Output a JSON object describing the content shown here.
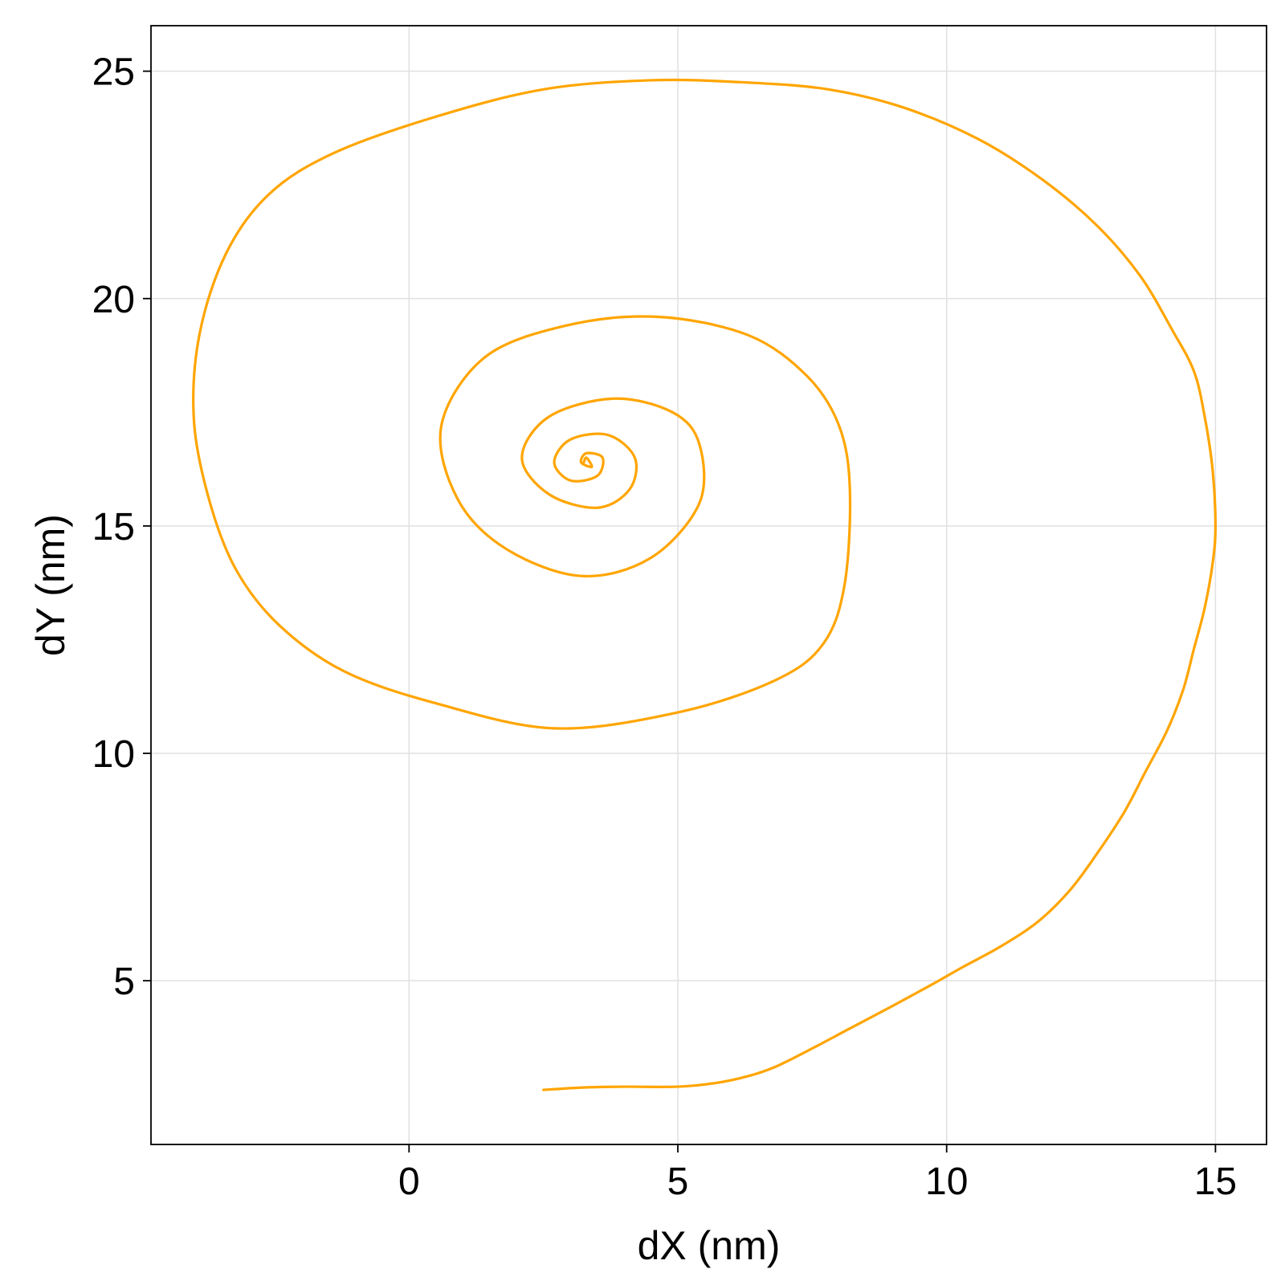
{
  "chart_data": {
    "type": "line",
    "title": "",
    "xlabel": "dX (nm)",
    "ylabel": "dY (nm)",
    "xlim": [
      -4.8,
      15.95
    ],
    "ylim": [
      1.4,
      26.0
    ],
    "xticks": [
      0,
      5,
      10,
      15
    ],
    "yticks": [
      5,
      10,
      15,
      20,
      25
    ],
    "grid": true,
    "legend": "none",
    "colors": {
      "line": "#FFA500",
      "grid": "#E0E0E0",
      "frame": "#000000",
      "text": "#000000"
    },
    "series": [
      {
        "x": [
          2.5,
          3.2,
          4.0,
          5.0,
          5.7,
          6.3,
          6.8,
          7.4,
          8.2,
          9.0,
          9.7,
          10.3,
          11.0,
          11.7,
          12.3,
          12.8,
          13.3,
          13.7,
          14.1,
          14.4,
          14.6,
          14.8,
          14.95,
          15.0,
          14.95,
          14.8,
          14.6,
          14.2,
          13.6,
          12.8,
          11.8,
          10.6,
          9.2,
          7.8,
          6.3,
          4.5,
          2.5,
          0.5,
          -1.4,
          -2.6,
          -3.4,
          -3.9,
          -4.0,
          -3.7,
          -3.2,
          -2.4,
          -1.2,
          0.5,
          2.7,
          5.0,
          6.8,
          7.7,
          8.1,
          8.2,
          8.0,
          7.4,
          6.3,
          4.6,
          2.9,
          1.4,
          0.6,
          0.9,
          1.8,
          3.2,
          4.5,
          5.4,
          5.4,
          4.9,
          3.8,
          2.6,
          2.1,
          2.6,
          3.5,
          4.1,
          4.2,
          3.7,
          3.0,
          2.7,
          3.0,
          3.5,
          3.6,
          3.3,
          3.2,
          3.4,
          3.3,
          3.25
        ],
        "y": [
          2.6,
          2.65,
          2.67,
          2.67,
          2.75,
          2.9,
          3.1,
          3.45,
          3.95,
          4.45,
          4.9,
          5.3,
          5.75,
          6.3,
          7.0,
          7.8,
          8.7,
          9.6,
          10.5,
          11.4,
          12.3,
          13.2,
          14.2,
          15.0,
          16.2,
          17.4,
          18.4,
          19.3,
          20.5,
          21.6,
          22.6,
          23.5,
          24.2,
          24.6,
          24.75,
          24.8,
          24.6,
          24.0,
          23.2,
          22.3,
          21.0,
          19.2,
          17.3,
          15.5,
          14.0,
          12.8,
          11.8,
          11.1,
          10.55,
          10.9,
          11.6,
          12.4,
          13.7,
          15.8,
          17.2,
          18.3,
          19.2,
          19.6,
          19.4,
          18.7,
          17.2,
          15.6,
          14.5,
          13.9,
          14.3,
          15.5,
          16.8,
          17.5,
          17.8,
          17.4,
          16.5,
          15.7,
          15.4,
          15.8,
          16.5,
          17.0,
          16.9,
          16.4,
          16.0,
          16.1,
          16.5,
          16.6,
          16.4,
          16.3,
          16.5,
          16.4
        ]
      }
    ]
  }
}
